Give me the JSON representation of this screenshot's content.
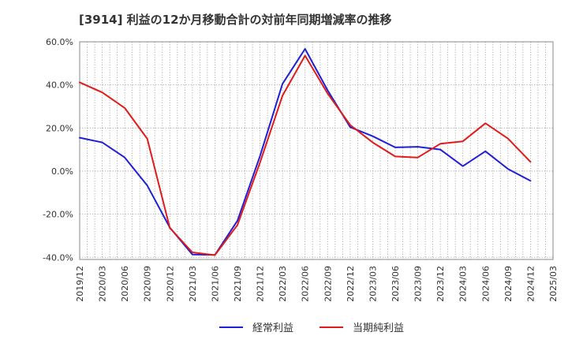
{
  "chart_data": {
    "type": "line",
    "title": "[3914]  利益の12か月移動合計の対前年同期増減率の推移",
    "x": [
      "2019/12",
      "2020/03",
      "2020/06",
      "2020/09",
      "2020/12",
      "2021/03",
      "2021/06",
      "2021/09",
      "2021/12",
      "2022/03",
      "2022/06",
      "2022/09",
      "2022/12",
      "2023/03",
      "2023/06",
      "2023/09",
      "2023/12",
      "2024/03",
      "2024/06",
      "2024/09",
      "2024/12",
      "2025/03"
    ],
    "ytick_labels": [
      "60.0%",
      "40.0%",
      "20.0%",
      "0.0%",
      "-20.0%",
      "-40.0%"
    ],
    "ytick_values": [
      60,
      40,
      20,
      0,
      -20,
      -40
    ],
    "ylim": [
      -41,
      60
    ],
    "grid": true,
    "legend_position": "bottom",
    "series": [
      {
        "name": "経常利益",
        "color": "#1f1fd6",
        "values": [
          15.5,
          13.3,
          6.3,
          -6.7,
          -26.2,
          -38.7,
          -38.9,
          -23.0,
          7.0,
          40.5,
          56.7,
          37.5,
          20.4,
          16.2,
          11.0,
          11.3,
          10.0,
          2.3,
          9.2,
          1.0,
          -4.5,
          null
        ]
      },
      {
        "name": "当期純利益",
        "color": "#e01b1b",
        "values": [
          41.2,
          36.5,
          29.3,
          15.0,
          -26.4,
          -37.7,
          -39.0,
          -25.0,
          4.0,
          35.0,
          53.6,
          36.0,
          21.4,
          13.3,
          6.8,
          6.3,
          12.7,
          13.8,
          22.2,
          15.1,
          4.3,
          null
        ]
      }
    ]
  }
}
